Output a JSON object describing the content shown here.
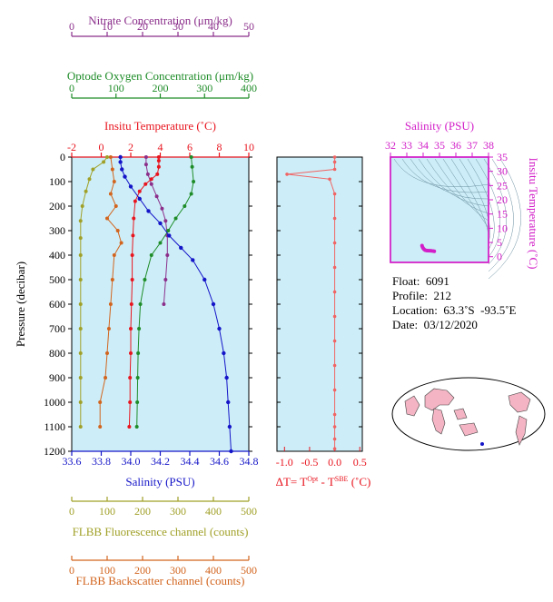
{
  "colors": {
    "nitrate": "#8b2f8b",
    "oxygen": "#1e8c28",
    "temperature": "#e8141e",
    "salinity": "#1414c8",
    "fluorescence": "#a0a028",
    "backscatter": "#d2641e",
    "dT": "#f06464",
    "ts_axis": "#d21ec8",
    "panel_bg": "#cdeef8"
  },
  "axes": {
    "nitrate": {
      "label": "Nitrate Concentration (μm/kg)",
      "ticks": [
        "0",
        "10",
        "20",
        "30",
        "40",
        "50"
      ]
    },
    "oxygen": {
      "label": "Optode Oxygen Concentration (μm/kg)",
      "ticks": [
        "0",
        "100",
        "200",
        "300",
        "400"
      ]
    },
    "temperature": {
      "label": "Insitu Temperature (˚C)",
      "ticks": [
        "-2",
        "0",
        "2",
        "4",
        "6",
        "8",
        "10"
      ]
    },
    "pressure": {
      "label": "Pressure (decibar)",
      "ticks": [
        "0",
        "100",
        "200",
        "300",
        "400",
        "500",
        "600",
        "700",
        "800",
        "900",
        "1000",
        "1100",
        "1200"
      ]
    },
    "salinity": {
      "label": "Salinity (PSU)",
      "ticks": [
        "33.6",
        "33.8",
        "34.0",
        "34.2",
        "34.4",
        "34.6",
        "34.8"
      ]
    },
    "fluorescence": {
      "label": "FLBB Fluorescence channel (counts)",
      "ticks": [
        "0",
        "100",
        "200",
        "300",
        "400",
        "500"
      ]
    },
    "backscatter": {
      "label": "FLBB Backscatter channel (counts)",
      "ticks": [
        "0",
        "100",
        "200",
        "300",
        "400",
        "500"
      ]
    },
    "dT": {
      "label_prefix": "ΔT= T",
      "sup1": "Opt",
      "label_mid": " - T",
      "sup2": "SBE",
      "label_suffix": " (˚C)",
      "ticks": [
        "-1.0",
        "-0.5",
        "0.0",
        "0.5"
      ]
    },
    "ts_salinity": {
      "label": "Salinity (PSU)",
      "ticks": [
        "32",
        "33",
        "34",
        "35",
        "36",
        "37",
        "38"
      ]
    },
    "ts_temperature": {
      "label": "Insitu Temperature (˚C)",
      "ticks": [
        "0",
        "5",
        "10",
        "15",
        "20",
        "25",
        "30",
        "35"
      ]
    }
  },
  "info": {
    "float": "Float:  6091",
    "profile": "Profile:  212",
    "location": "Location:  63.3˚S  -93.5˚E",
    "date": "Date:  03/12/2020"
  },
  "chart_data": [
    {
      "type": "line",
      "title": "",
      "ylabel": "Pressure (decibar)",
      "ylim": [
        1200,
        0
      ],
      "series": [
        {
          "name": "Insitu Temperature (˚C)",
          "xlim": [
            -2,
            10
          ],
          "x": [
            3.9,
            3.9,
            3.9,
            3.8,
            3.4,
            3.0,
            2.6,
            2.3,
            2.2,
            2.15,
            2.1,
            2.1,
            2.05,
            2.0,
            2.0,
            1.95,
            1.95,
            1.9
          ],
          "y": [
            0,
            15,
            40,
            70,
            90,
            110,
            140,
            180,
            250,
            320,
            400,
            500,
            600,
            700,
            800,
            900,
            1000,
            1100
          ]
        },
        {
          "name": "Salinity (PSU)",
          "xlim": [
            33.6,
            34.8
          ],
          "x": [
            33.93,
            33.93,
            33.94,
            33.96,
            34.0,
            34.06,
            34.12,
            34.2,
            34.26,
            34.34,
            34.42,
            34.5,
            34.56,
            34.6,
            34.63,
            34.65,
            34.66,
            34.67,
            34.68
          ],
          "y": [
            0,
            20,
            50,
            80,
            120,
            170,
            220,
            270,
            320,
            370,
            420,
            500,
            600,
            700,
            800,
            900,
            1000,
            1100,
            1200
          ]
        },
        {
          "name": "Optode Oxygen Concentration (μm/kg)",
          "xlim": [
            0,
            400
          ],
          "x": [
            270,
            272,
            275,
            270,
            255,
            235,
            218,
            200,
            180,
            165,
            155,
            152,
            150,
            149,
            148,
            147
          ],
          "y": [
            0,
            40,
            100,
            150,
            200,
            250,
            300,
            350,
            400,
            500,
            600,
            700,
            800,
            900,
            1000,
            1100
          ]
        },
        {
          "name": "Nitrate Concentration (μm/kg)",
          "xlim": [
            0,
            50
          ],
          "x": [
            21,
            21,
            21.5,
            22.5,
            24,
            25.5,
            26.5,
            27,
            27,
            26.5,
            26
          ],
          "y": [
            0,
            30,
            70,
            110,
            160,
            210,
            260,
            320,
            400,
            500,
            600
          ]
        },
        {
          "name": "FLBB Fluorescence channel (counts)",
          "xlim": [
            0,
            500
          ],
          "x": [
            100,
            90,
            60,
            50,
            40,
            30,
            25,
            25,
            25,
            25,
            25,
            25,
            25,
            25,
            25,
            25
          ],
          "y": [
            0,
            20,
            50,
            90,
            140,
            200,
            260,
            330,
            400,
            500,
            600,
            700,
            800,
            900,
            1000,
            1100
          ]
        },
        {
          "name": "FLBB Backscatter channel (counts)",
          "xlim": [
            0,
            500
          ],
          "x": [
            110,
            115,
            120,
            110,
            125,
            100,
            130,
            140,
            120,
            115,
            110,
            105,
            100,
            95,
            80,
            80
          ],
          "y": [
            0,
            50,
            100,
            150,
            200,
            250,
            300,
            350,
            400,
            500,
            600,
            700,
            800,
            900,
            1000,
            1100
          ]
        }
      ]
    },
    {
      "type": "line",
      "title": "",
      "xlabel": "ΔT= TOpt - TSBE (˚C)",
      "xlim": [
        -1.15,
        0.55
      ],
      "ylim": [
        1200,
        0
      ],
      "series": [
        {
          "name": "",
          "x": [
            0.0,
            0.0,
            0.0,
            -0.95,
            -0.1,
            0.0,
            0.0,
            0.0,
            0.0,
            0.0,
            0.0,
            0.0,
            0.0,
            0.0,
            0.0,
            0.0,
            0.0,
            0.0
          ],
          "y": [
            0,
            20,
            50,
            70,
            90,
            150,
            250,
            350,
            450,
            550,
            650,
            750,
            850,
            950,
            1050,
            1100,
            1150,
            1190
          ]
        }
      ]
    },
    {
      "type": "scatter",
      "title": "",
      "xlabel": "Salinity (PSU)",
      "ylabel": "Insitu Temperature (˚C)",
      "xlim": [
        32,
        38
      ],
      "ylim": [
        -2,
        35
      ],
      "series": [
        {
          "name": "",
          "x": [
            33.93,
            33.96,
            34.0,
            34.06,
            34.12,
            34.2,
            34.26,
            34.34,
            34.42,
            34.5,
            34.6,
            34.68
          ],
          "y": [
            3.9,
            3.4,
            3.0,
            2.6,
            2.3,
            2.2,
            2.15,
            2.1,
            2.1,
            2.05,
            2.0,
            1.9
          ]
        }
      ]
    }
  ]
}
